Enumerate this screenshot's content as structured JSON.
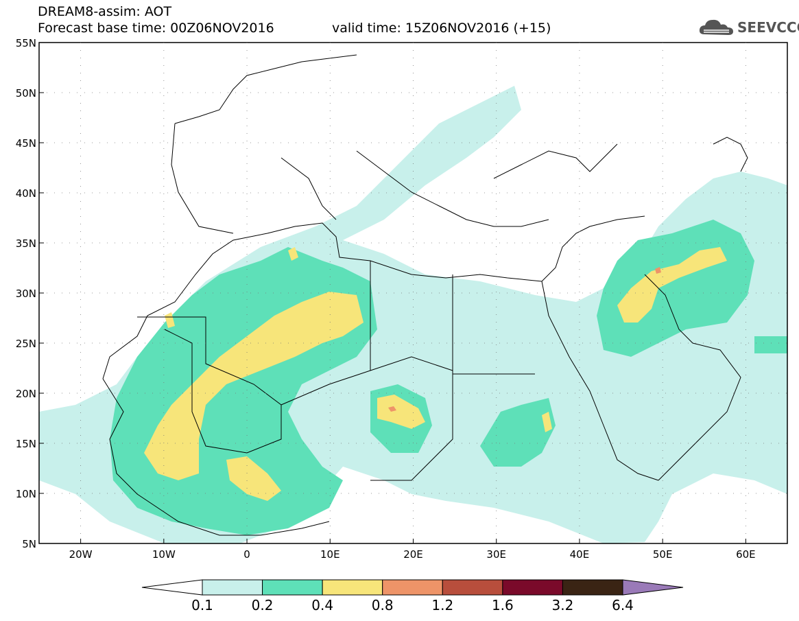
{
  "header": {
    "title": "DREAM8-assim: AOT",
    "base_time": "Forecast base time: 00Z06NOV2016",
    "valid_time": "valid time: 15Z06NOV2016 (+15)",
    "logo_text": "SEEVCCC"
  },
  "map": {
    "lon_range": [
      -25,
      65
    ],
    "lat_range": [
      5,
      55
    ],
    "lat_labels": [
      "55N",
      "50N",
      "45N",
      "40N",
      "35N",
      "30N",
      "25N",
      "20N",
      "15N",
      "10N",
      "5N"
    ],
    "lon_labels": [
      "20W",
      "10W",
      "0",
      "10E",
      "20E",
      "30E",
      "40E",
      "50E",
      "60E"
    ]
  },
  "legend": {
    "labels": [
      "0.1",
      "0.2",
      "0.4",
      "0.8",
      "1.2",
      "1.6",
      "3.2",
      "6.4"
    ],
    "colors": [
      "#c8f0eb",
      "#5ee0b8",
      "#f7e57a",
      "#ee9468",
      "#b84e3c",
      "#7a0a2a",
      "#3a2414",
      "#9a7ab8"
    ]
  }
}
